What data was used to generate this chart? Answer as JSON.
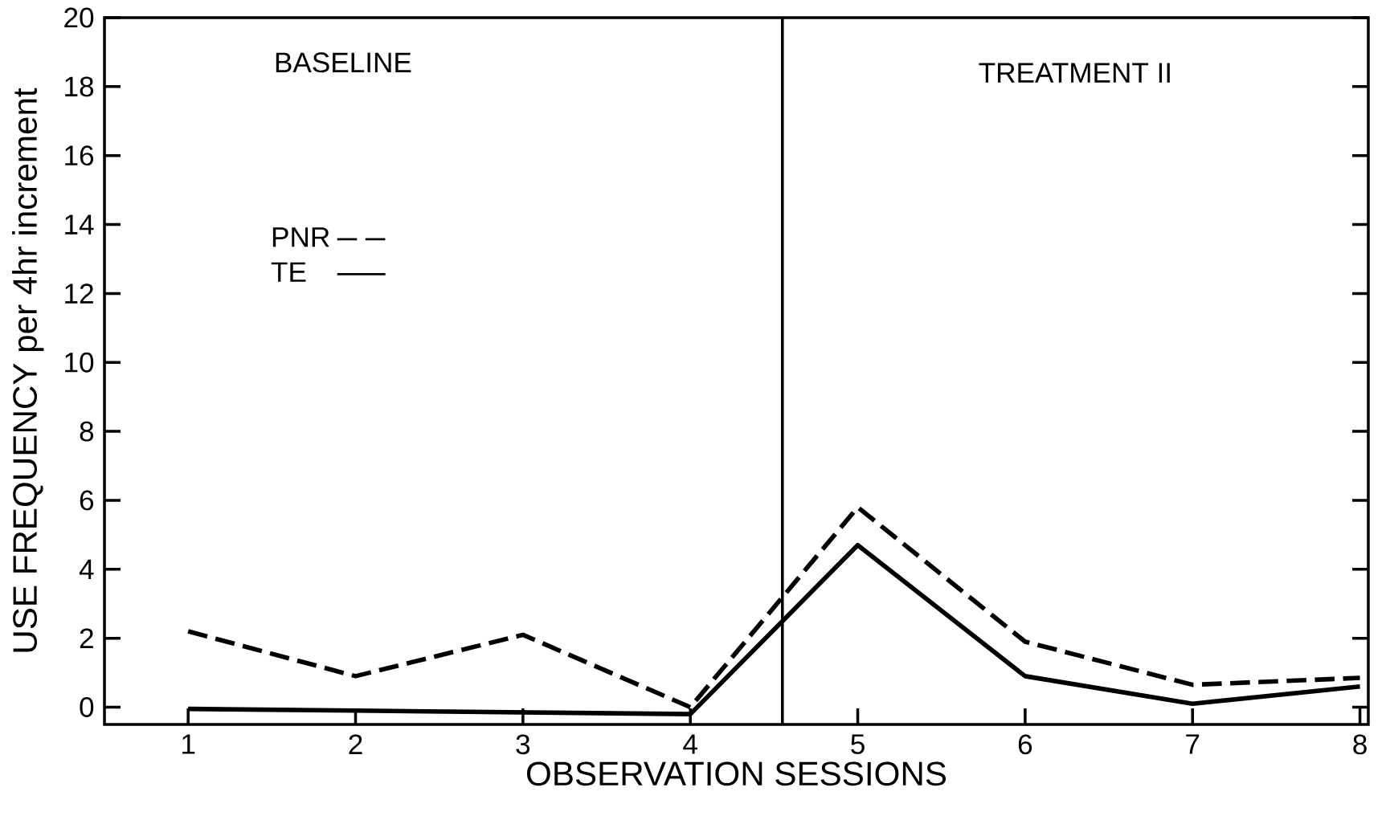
{
  "chart_data": {
    "type": "line",
    "xlabel": "OBSERVATION   SESSIONS",
    "ylabel": "USE FREQUENCY per 4hr increment",
    "x": [
      1,
      2,
      3,
      4,
      5,
      6,
      7,
      8
    ],
    "series": [
      {
        "name": "PNR",
        "color": "#000000",
        "line_style": "dashed",
        "values": [
          2.2,
          0.9,
          2.1,
          0,
          5.8,
          1.9,
          0.65,
          0.85
        ]
      },
      {
        "name": "TE",
        "color": "#000000",
        "line_style": "solid",
        "values": [
          -0.05,
          -0.1,
          -0.15,
          -0.2,
          4.7,
          0.9,
          0.1,
          0.6
        ]
      }
    ],
    "xlim": [
      0.5,
      8.05
    ],
    "ylim": [
      -0.5,
      20
    ],
    "xticks": [
      1,
      2,
      3,
      4,
      5,
      6,
      7,
      8
    ],
    "yticks": [
      0,
      2,
      4,
      6,
      8,
      10,
      12,
      14,
      16,
      18,
      20
    ],
    "ref_lines": [
      {
        "axis": "x",
        "value": 4.55,
        "color": "#000000"
      }
    ],
    "annotations": [
      "BASELINE",
      "TREATMENT II"
    ],
    "legend": "top left",
    "grid": false,
    "marker": "none"
  }
}
